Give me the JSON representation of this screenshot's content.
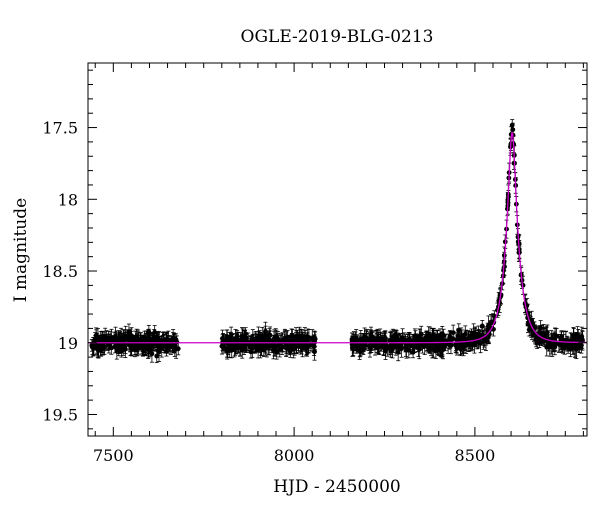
{
  "chart_data": {
    "type": "scatter",
    "title": "OGLE-2019-BLG-0213",
    "xlabel": "HJD - 2450000",
    "ylabel": "I magnitude",
    "xlim": [
      7430,
      8810
    ],
    "ylim": [
      19.65,
      17.05
    ],
    "y_inverted": true,
    "xticks": [
      7500,
      8000,
      8500
    ],
    "yticks": [
      17.5,
      18,
      18.5,
      19,
      19.5
    ],
    "xtick_labels": [
      "7500",
      "8000",
      "8500"
    ],
    "ytick_labels": [
      "17.5",
      "18",
      "18.5",
      "19",
      "19.5"
    ],
    "grid": false,
    "series": [
      {
        "kind": "points_with_errorbars",
        "color": "#000000",
        "baseline_mag": 19.0,
        "observing_seasons": [
          [
            7440,
            7680
          ],
          [
            7800,
            8060
          ],
          [
            8160,
            8420
          ],
          [
            8425,
            8800
          ]
        ],
        "typical_error": 0.05
      },
      {
        "kind": "model_curve",
        "color": "#cc00cc",
        "baseline_mag": 19.0,
        "peak_time": 8603,
        "peak_mag": 17.53
      }
    ]
  }
}
